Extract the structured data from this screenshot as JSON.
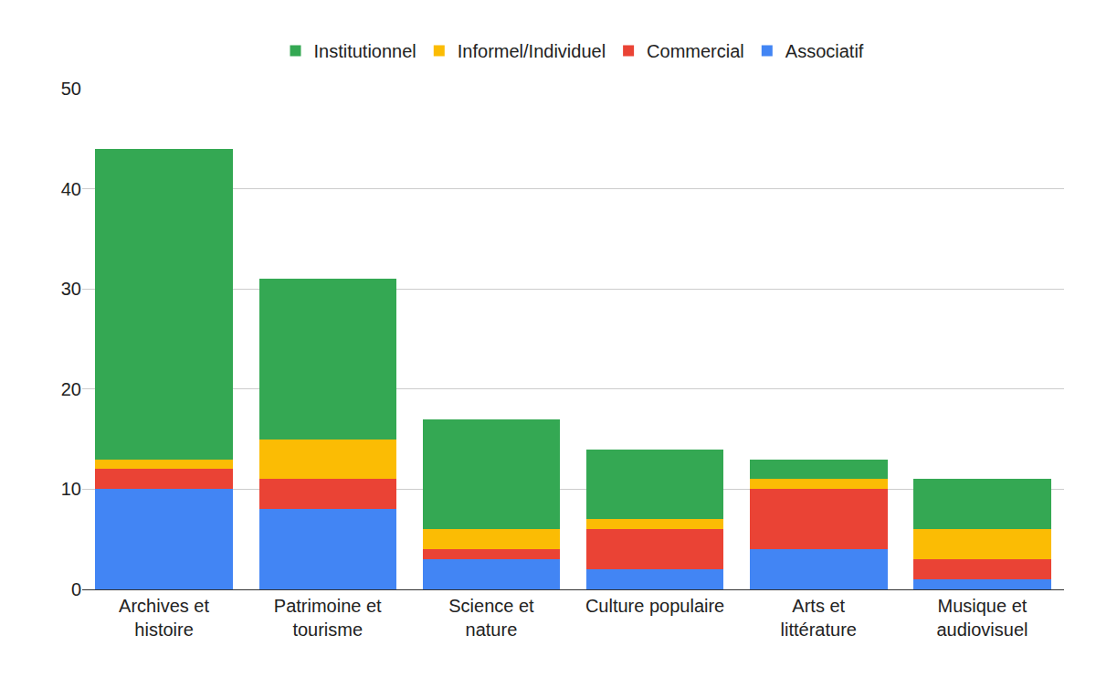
{
  "chart_data": {
    "type": "bar",
    "stacked": true,
    "grid": true,
    "legend": "top",
    "categories": [
      "Archives et histoire",
      "Patrimoine et tourisme",
      "Science et nature",
      "Culture populaire",
      "Arts et littérature",
      "Musique et audiovisuel"
    ],
    "series": [
      {
        "name": "Associatif",
        "color": "#4285f4",
        "values": [
          10,
          8,
          3,
          2,
          4,
          1
        ]
      },
      {
        "name": "Commercial",
        "color": "#ea4335",
        "values": [
          2,
          3,
          1,
          4,
          6,
          2
        ]
      },
      {
        "name": "Informel/Individuel",
        "color": "#fbbc04",
        "values": [
          1,
          4,
          2,
          1,
          1,
          3
        ]
      },
      {
        "name": "Institutionnel",
        "color": "#34a853",
        "values": [
          31,
          16,
          11,
          7,
          2,
          5
        ]
      }
    ],
    "ylim": [
      0,
      50
    ],
    "yticks": [
      0,
      10,
      20,
      30,
      40,
      50
    ]
  }
}
